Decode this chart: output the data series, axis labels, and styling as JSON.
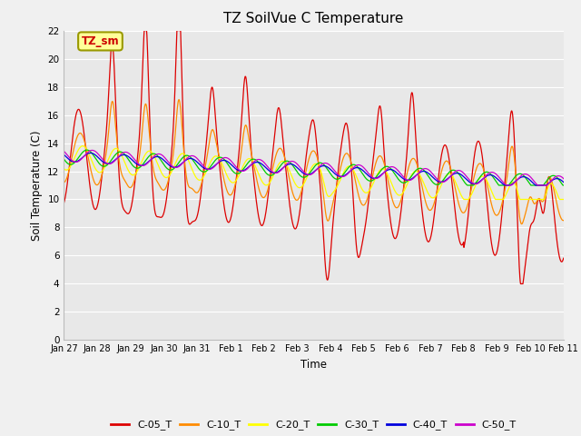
{
  "title": "TZ SoilVue C Temperature",
  "xlabel": "Time",
  "ylabel": "Soil Temperature (C)",
  "ylim": [
    0,
    22
  ],
  "yticks": [
    0,
    2,
    4,
    6,
    8,
    10,
    12,
    14,
    16,
    18,
    20,
    22
  ],
  "annotation_text": "TZ_sm",
  "annotation_color": "#cc0000",
  "annotation_bg": "#ffff99",
  "annotation_border": "#999900",
  "series_colors": {
    "C-05_T": "#dd0000",
    "C-10_T": "#ff8c00",
    "C-20_T": "#ffff00",
    "C-30_T": "#00cc00",
    "C-40_T": "#0000dd",
    "C-50_T": "#cc00cc"
  },
  "plot_bg": "#e8e8e8",
  "fig_bg": "#f0f0f0",
  "xtick_labels": [
    "Jan 27",
    "Jan 28",
    "Jan 29",
    "Jan 30",
    "Jan 31",
    "Feb 1",
    "Feb 2",
    "Feb 3",
    "Feb 4",
    "Feb 5",
    "Feb 6",
    "Feb 7",
    "Feb 8",
    "Feb 9",
    "Feb 10",
    "Feb 11"
  ],
  "xtick_positions": [
    0,
    1,
    2,
    3,
    4,
    5,
    6,
    7,
    8,
    9,
    10,
    11,
    12,
    13,
    14,
    15
  ]
}
